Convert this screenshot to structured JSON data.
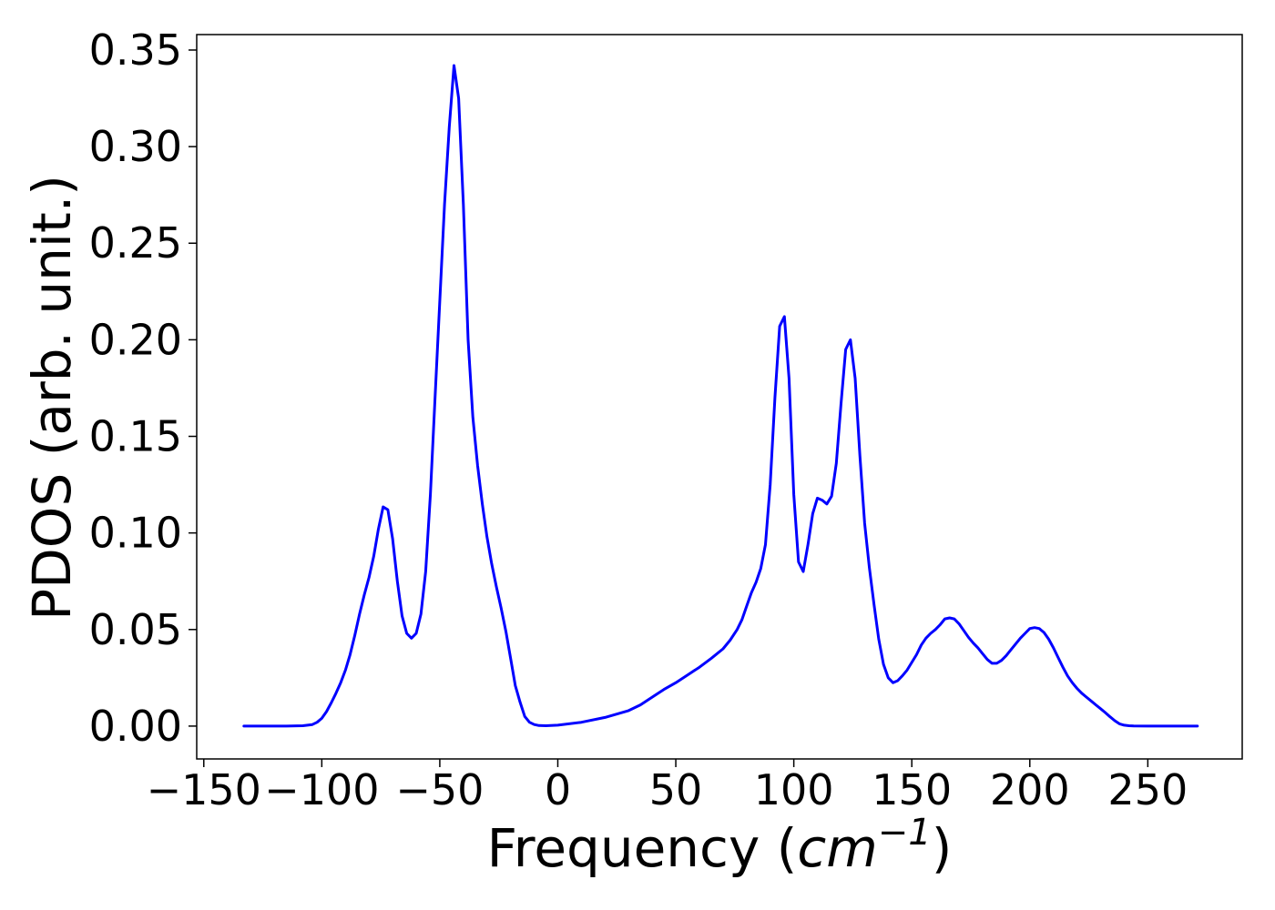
{
  "chart_data": {
    "type": "line",
    "title": "",
    "xlabel": {
      "prefix": "Frequency (",
      "unit": "cm",
      "exponent": "−1",
      "suffix": ")"
    },
    "ylabel": "PDOS (arb. unit.)",
    "xlim": [
      -153,
      290
    ],
    "ylim": [
      -0.017,
      0.358
    ],
    "xticks": [
      -150,
      -100,
      -50,
      0,
      50,
      100,
      150,
      200,
      250
    ],
    "xtick_labels": [
      "−150",
      "−100",
      "−50",
      "0",
      "50",
      "100",
      "150",
      "200",
      "250"
    ],
    "yticks": [
      0,
      0.05,
      0.1,
      0.15,
      0.2,
      0.25,
      0.3,
      0.35
    ],
    "ytick_labels": [
      "0.00",
      "0.05",
      "0.10",
      "0.15",
      "0.20",
      "0.25",
      "0.30",
      "0.35"
    ],
    "grid": false,
    "legend": null,
    "series": [
      {
        "color": "#0000ff",
        "x": [
          -133,
          -115,
          -108,
          -104,
          -102,
          -100,
          -98,
          -96,
          -94,
          -92,
          -90,
          -88,
          -86,
          -84,
          -82,
          -80,
          -78,
          -76,
          -74,
          -72,
          -70,
          -68,
          -66,
          -64,
          -62,
          -60,
          -58,
          -56,
          -54,
          -52,
          -50,
          -48,
          -46,
          -44,
          -42,
          -40,
          -38,
          -36,
          -34,
          -32,
          -30,
          -28,
          -26,
          -24,
          -22,
          -20,
          -18,
          -16,
          -14,
          -12,
          -10,
          -8,
          -5,
          0,
          10,
          20,
          30,
          35,
          40,
          45,
          50,
          55,
          60,
          65,
          70,
          73,
          76,
          78,
          80,
          82,
          84,
          86,
          88,
          90,
          92,
          94,
          96,
          98,
          100,
          102,
          104,
          106,
          108,
          110,
          112,
          114,
          116,
          118,
          120,
          122,
          124,
          126,
          128,
          130,
          132,
          134,
          136,
          138,
          140,
          142,
          144,
          146,
          148,
          150,
          152,
          154,
          156,
          158,
          160,
          162,
          164,
          166,
          168,
          170,
          172,
          174,
          176,
          178,
          180,
          182,
          184,
          186,
          188,
          190,
          192,
          194,
          196,
          198,
          200,
          202,
          204,
          206,
          208,
          210,
          212,
          214,
          216,
          218,
          220,
          222,
          224,
          226,
          228,
          230,
          232,
          234,
          236,
          238,
          240,
          242,
          244,
          250,
          260,
          271
        ],
        "y": [
          0.0,
          0.0,
          0.0002,
          0.0008,
          0.002,
          0.004,
          0.0075,
          0.012,
          0.017,
          0.0225,
          0.029,
          0.037,
          0.047,
          0.058,
          0.068,
          0.077,
          0.088,
          0.102,
          0.1135,
          0.112,
          0.097,
          0.075,
          0.057,
          0.048,
          0.0455,
          0.048,
          0.058,
          0.08,
          0.12,
          0.17,
          0.22,
          0.27,
          0.31,
          0.342,
          0.325,
          0.27,
          0.2,
          0.16,
          0.135,
          0.115,
          0.098,
          0.084,
          0.072,
          0.061,
          0.049,
          0.035,
          0.021,
          0.0125,
          0.005,
          0.002,
          0.0008,
          0.0003,
          0.0002,
          0.0005,
          0.002,
          0.0045,
          0.008,
          0.011,
          0.015,
          0.019,
          0.0225,
          0.0265,
          0.0305,
          0.035,
          0.04,
          0.0445,
          0.05,
          0.055,
          0.062,
          0.069,
          0.0745,
          0.0815,
          0.094,
          0.125,
          0.17,
          0.207,
          0.212,
          0.18,
          0.12,
          0.085,
          0.08,
          0.094,
          0.11,
          0.118,
          0.117,
          0.115,
          0.119,
          0.136,
          0.167,
          0.195,
          0.2,
          0.18,
          0.14,
          0.105,
          0.082,
          0.063,
          0.045,
          0.032,
          0.025,
          0.0225,
          0.0235,
          0.026,
          0.029,
          0.033,
          0.037,
          0.042,
          0.0455,
          0.048,
          0.05,
          0.0525,
          0.0555,
          0.056,
          0.0555,
          0.053,
          0.0495,
          0.046,
          0.043,
          0.0405,
          0.0375,
          0.0345,
          0.0325,
          0.0325,
          0.034,
          0.0365,
          0.0395,
          0.0425,
          0.0455,
          0.048,
          0.0505,
          0.051,
          0.0505,
          0.0485,
          0.045,
          0.0405,
          0.0355,
          0.0305,
          0.026,
          0.0225,
          0.0195,
          0.017,
          0.015,
          0.013,
          0.011,
          0.009,
          0.007,
          0.0048,
          0.0028,
          0.0012,
          0.0005,
          0.0002,
          0.0001,
          0.0,
          0.0,
          0.0
        ]
      }
    ]
  }
}
